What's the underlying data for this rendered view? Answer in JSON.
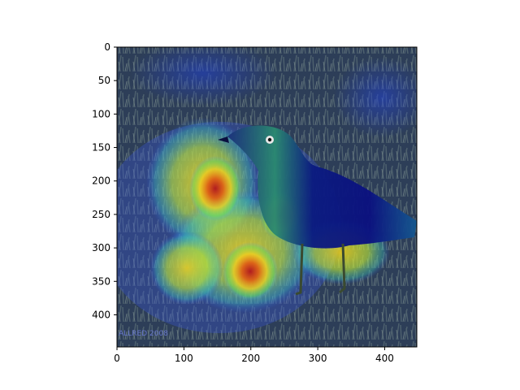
{
  "figure": {
    "image": {
      "subject": "bird",
      "watermark": "ALLRED 2008"
    },
    "heatmap": {
      "colormap": "jet",
      "overlay": "semi-transparent"
    },
    "x_axis": {
      "range": [
        0,
        448
      ],
      "ticks": [
        {
          "value": 0,
          "label": "0"
        },
        {
          "value": 100,
          "label": "100"
        },
        {
          "value": 200,
          "label": "200"
        },
        {
          "value": 300,
          "label": "300"
        },
        {
          "value": 400,
          "label": "400"
        }
      ]
    },
    "y_axis": {
      "range": [
        0,
        448
      ],
      "inverted": true,
      "ticks": [
        {
          "value": 0,
          "label": "0"
        },
        {
          "value": 50,
          "label": "50"
        },
        {
          "value": 100,
          "label": "100"
        },
        {
          "value": 150,
          "label": "150"
        },
        {
          "value": 200,
          "label": "200"
        },
        {
          "value": 250,
          "label": "250"
        },
        {
          "value": 300,
          "label": "300"
        },
        {
          "value": 350,
          "label": "350"
        },
        {
          "value": 400,
          "label": "400"
        }
      ]
    }
  }
}
